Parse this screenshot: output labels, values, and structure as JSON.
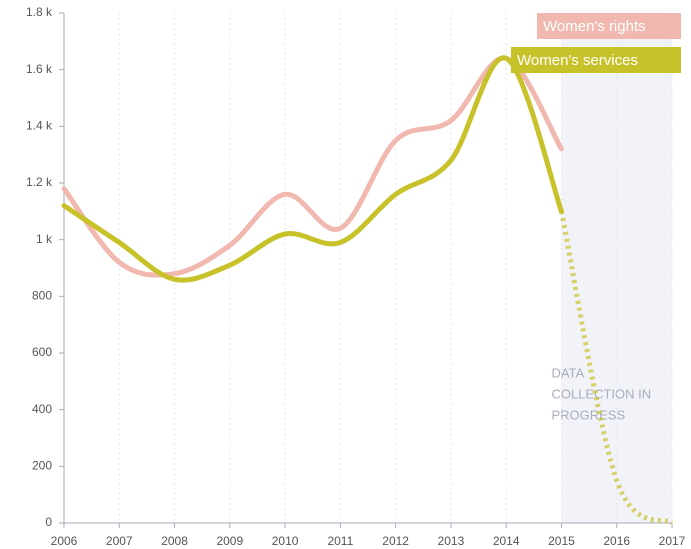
{
  "chart_data": {
    "type": "line",
    "x": [
      2006,
      2007,
      2008,
      2009,
      2010,
      2011,
      2012,
      2013,
      2014,
      2015,
      2016,
      2017
    ],
    "series": [
      {
        "name": "Women's rights",
        "color": "#f0b8ae",
        "values": [
          1180,
          920,
          880,
          980,
          1160,
          1040,
          1350,
          1420,
          1640,
          1320,
          null,
          null
        ]
      },
      {
        "name": "Women's services",
        "color": "#c8c22a",
        "values": [
          1120,
          990,
          860,
          910,
          1020,
          990,
          1160,
          1280,
          1640,
          1100,
          150,
          0
        ]
      }
    ],
    "xlim": [
      2006,
      2017
    ],
    "xticks": [
      2006,
      2007,
      2008,
      2009,
      2010,
      2011,
      2012,
      2013,
      2014,
      2015,
      2016,
      2017
    ],
    "ylim": [
      0,
      1800
    ],
    "yticks": [
      0,
      200,
      400,
      600,
      800,
      {
        "value": 1000,
        "label": "1 k"
      },
      {
        "value": 1200,
        "label": "1.2 k"
      },
      {
        "value": 1400,
        "label": "1.4 k"
      },
      {
        "value": 1600,
        "label": "1.6 k"
      },
      {
        "value": 1800,
        "label": "1.8 k"
      }
    ],
    "grid": true,
    "shaded_region": {
      "xlim": [
        2015,
        2017
      ],
      "label_lines": [
        "DATA",
        "COLLECTION IN",
        "PROGRESS"
      ]
    }
  }
}
